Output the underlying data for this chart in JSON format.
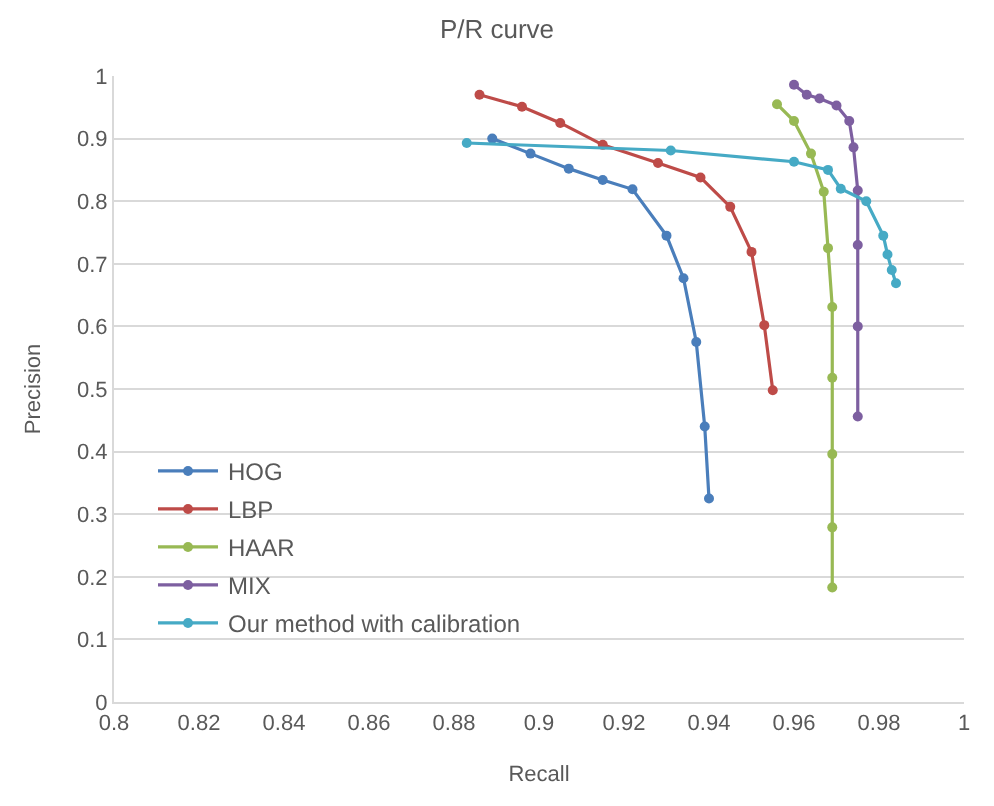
{
  "chart_data": {
    "type": "line",
    "title": "P/R curve",
    "xlabel": "Recall",
    "ylabel": "Precision",
    "xlim": [
      0.8,
      1
    ],
    "xticks": [
      0.8,
      0.82,
      0.84,
      0.86,
      0.88,
      0.9,
      0.92,
      0.94,
      0.96,
      0.98,
      1
    ],
    "ylim": [
      0,
      1
    ],
    "yticks": [
      0,
      0.1,
      0.2,
      0.3,
      0.4,
      0.5,
      0.6,
      0.7,
      0.8,
      0.9,
      1
    ],
    "grid": "y",
    "legend": "bottom left",
    "marker": "circle",
    "line_style": "solid",
    "series": [
      {
        "name": "HOG",
        "color": "#4a7ebb",
        "x": [
          0.889,
          0.898,
          0.907,
          0.915,
          0.922,
          0.93,
          0.934,
          0.937,
          0.939,
          0.94
        ],
        "values": [
          0.9,
          0.876,
          0.852,
          0.834,
          0.819,
          0.745,
          0.677,
          0.575,
          0.44,
          0.325
        ]
      },
      {
        "name": "LBP",
        "color": "#be4b48",
        "x": [
          0.886,
          0.896,
          0.905,
          0.915,
          0.928,
          0.938,
          0.945,
          0.95,
          0.953,
          0.955
        ],
        "values": [
          0.97,
          0.951,
          0.925,
          0.89,
          0.861,
          0.838,
          0.791,
          0.719,
          0.602,
          0.498
        ]
      },
      {
        "name": "HAAR",
        "color": "#98b954",
        "x": [
          0.956,
          0.96,
          0.964,
          0.967,
          0.968,
          0.969,
          0.969,
          0.969,
          0.969,
          0.969
        ],
        "values": [
          0.955,
          0.928,
          0.876,
          0.815,
          0.725,
          0.631,
          0.518,
          0.396,
          0.279,
          0.183
        ]
      },
      {
        "name": "MIX",
        "color": "#7d5fa0",
        "x": [
          0.96,
          0.963,
          0.966,
          0.97,
          0.973,
          0.974,
          0.975,
          0.975,
          0.975,
          0.975
        ],
        "values": [
          0.986,
          0.97,
          0.964,
          0.953,
          0.928,
          0.886,
          0.817,
          0.73,
          0.6,
          0.456
        ]
      },
      {
        "name": "Our method with calibration",
        "color": "#46aac5",
        "x": [
          0.883,
          0.931,
          0.96,
          0.968,
          0.971,
          0.977,
          0.981,
          0.982,
          0.983,
          0.984
        ],
        "values": [
          0.893,
          0.881,
          0.863,
          0.85,
          0.82,
          0.8,
          0.745,
          0.715,
          0.69,
          0.669
        ]
      }
    ]
  }
}
